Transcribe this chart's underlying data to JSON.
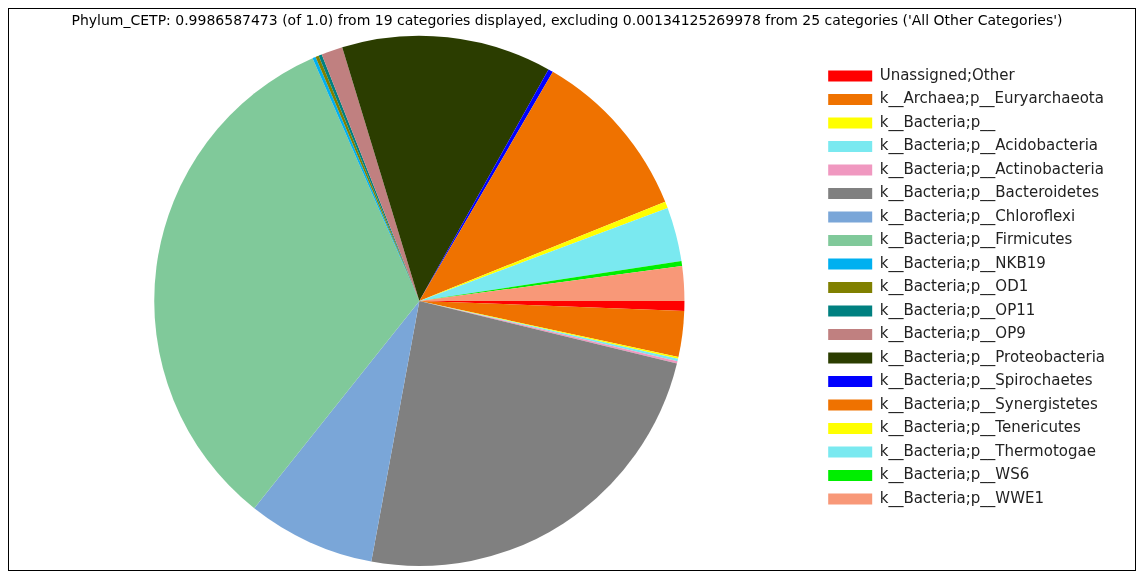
{
  "chart_data": {
    "type": "pie",
    "title": "Phylum_CETP: 0.9986587473 (of 1.0) from 19 categories displayed, excluding 0.00134125269978 from 25 categories ('All Other Categories')",
    "categories": [
      "Unassigned;Other",
      "k__Archaea;p__Euryarchaeota",
      "k__Bacteria;p__",
      "k__Bacteria;p__Acidobacteria",
      "k__Bacteria;p__Actinobacteria",
      "k__Bacteria;p__Bacteroidetes",
      "k__Bacteria;p__Chloroflexi",
      "k__Bacteria;p__Firmicutes",
      "k__Bacteria;p__NKB19",
      "k__Bacteria;p__OD1",
      "k__Bacteria;p__OP11",
      "k__Bacteria;p__OP9",
      "k__Bacteria;p__Proteobacteria",
      "k__Bacteria;p__Spirochaetes",
      "k__Bacteria;p__Synergistetes",
      "k__Bacteria;p__Tenericutes",
      "k__Bacteria;p__Thermotogae",
      "k__Bacteria;p__WS6",
      "k__Bacteria;p__WWE1"
    ],
    "values": [
      0.6,
      2.8,
      0.1,
      0.15,
      0.15,
      24.1,
      7.8,
      32.7,
      0.2,
      0.2,
      0.2,
      1.3,
      12.8,
      0.3,
      10.5,
      0.4,
      3.3,
      0.3,
      2.1
    ],
    "colors": [
      "#ff0000",
      "#ef7200",
      "#ffff00",
      "#7ae9f0",
      "#f098c0",
      "#808080",
      "#7aa6d8",
      "#80c99a",
      "#00b0f0",
      "#808000",
      "#008080",
      "#c08080",
      "#2b3d00",
      "#0000ff",
      "#ef7200",
      "#ffff00",
      "#7ae9f0",
      "#00ee00",
      "#f89878"
    ],
    "legend": "right"
  }
}
